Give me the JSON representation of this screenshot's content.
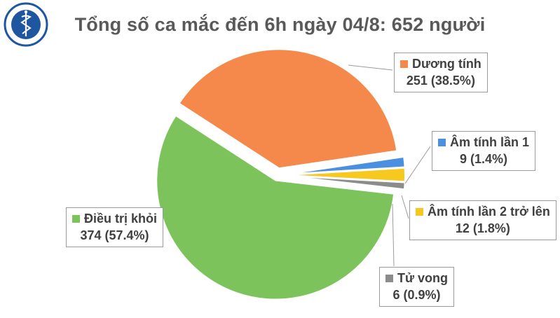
{
  "chart_data": {
    "type": "pie",
    "title": "Tổng số ca mắc đến 6h ngày 04/8: 652 người",
    "slices": [
      {
        "name": "Dương tính",
        "value": 251,
        "percent": "38.5%",
        "value_label": "251 (38.5%)",
        "color": "#F4894B",
        "exploded": true
      },
      {
        "name": "Âm tính lần 1",
        "value": 9,
        "percent": "1.4%",
        "value_label": "9 (1.4%)",
        "color": "#4A8FE0",
        "exploded": true
      },
      {
        "name": "Âm tính lần 2 trở lên",
        "value": 12,
        "percent": "1.8%",
        "value_label": "12 (1.8%)",
        "color": "#F7C81E",
        "exploded": true
      },
      {
        "name": "Tử vong",
        "value": 6,
        "percent": "0.9%",
        "value_label": "6 (0.9%)",
        "color": "#8C8C8C",
        "exploded": true
      },
      {
        "name": "Điều trị khỏi",
        "value": 374,
        "percent": "57.4%",
        "value_label": "374 (57.4%)",
        "color": "#7DC35B",
        "exploded": true
      }
    ]
  },
  "logo": {
    "top_text": "BỘ Y TẾ",
    "bottom_text": "MINISTRY OF HEALTH"
  }
}
